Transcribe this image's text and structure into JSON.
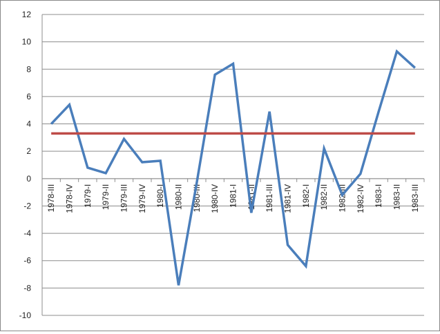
{
  "chart_data": {
    "type": "line",
    "categories": [
      "1978-III",
      "1978-IV",
      "1979-I",
      "1979-II",
      "1979-III",
      "1979-IV",
      "1980-I",
      "1980-II",
      "1980-III",
      "1980-IV",
      "1981-I",
      "1981-II",
      "1981-III",
      "1981-IV",
      "1982-I",
      "1982-II",
      "1982-III",
      "1982-IV",
      "1983-I",
      "1983-II",
      "1983-III"
    ],
    "series": [
      {
        "values": [
          4.0,
          5.4,
          0.8,
          0.4,
          2.9,
          1.2,
          1.3,
          -7.8,
          -0.3,
          7.6,
          8.4,
          -2.5,
          4.9,
          -4.85,
          -6.4,
          2.2,
          -1.2,
          0.35,
          4.9,
          9.3,
          8.1
        ],
        "color": "#4a7ebb"
      },
      {
        "values": [
          3.3,
          3.3,
          3.3,
          3.3,
          3.3,
          3.3,
          3.3,
          3.3,
          3.3,
          3.3,
          3.3,
          3.3,
          3.3,
          3.3,
          3.3,
          3.3,
          3.3,
          3.3,
          3.3,
          3.3,
          3.3
        ],
        "color": "#be4b48"
      }
    ],
    "yticks": [
      "12",
      "10",
      "8",
      "6",
      "4",
      "2",
      "0",
      "-2",
      "-4",
      "-6",
      "-8",
      "-10"
    ],
    "ylim": [
      -10,
      12
    ],
    "grid": true,
    "title": "",
    "xlabel": "",
    "ylabel": ""
  }
}
